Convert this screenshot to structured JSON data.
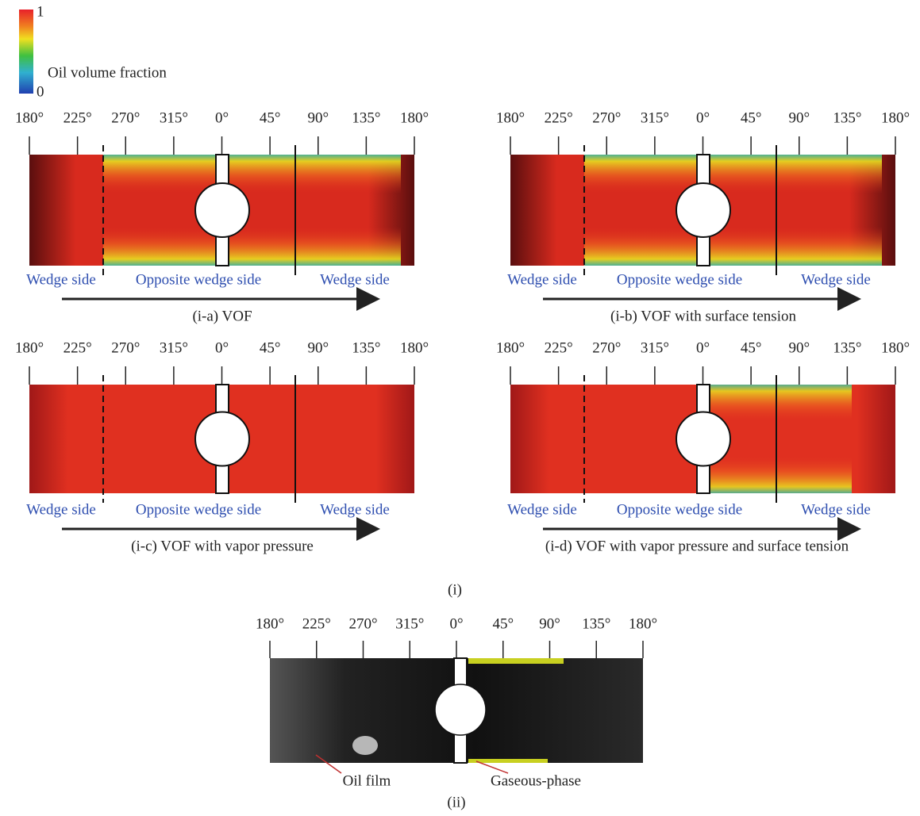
{
  "colorbar": {
    "max": "1",
    "min": "0",
    "label": "Oil volume fraction"
  },
  "panels": [
    {
      "angles": [
        "180°",
        "225°",
        "270°",
        "315°",
        "0°",
        "45°",
        "90°",
        "135°",
        "180°"
      ],
      "sides": [
        "Wedge side",
        "Opposite wedge side",
        "Wedge side"
      ],
      "caption": "(i-a) VOF"
    },
    {
      "angles": [
        "180°",
        "225°",
        "270°",
        "315°",
        "0°",
        "45°",
        "90°",
        "135°",
        "180°"
      ],
      "sides": [
        "Wedge side",
        "Opposite wedge side",
        "Wedge side"
      ],
      "caption": "(i-b) VOF with surface tension"
    },
    {
      "angles": [
        "180°",
        "225°",
        "270°",
        "315°",
        "0°",
        "45°",
        "90°",
        "135°",
        "180°"
      ],
      "sides": [
        "Wedge side",
        "Opposite wedge side",
        "Wedge side"
      ],
      "caption": "(i-c) VOF with vapor pressure"
    },
    {
      "angles": [
        "180°",
        "225°",
        "270°",
        "315°",
        "0°",
        "45°",
        "90°",
        "135°",
        "180°"
      ],
      "sides": [
        "Wedge side",
        "Opposite wedge side",
        "Wedge side"
      ],
      "caption": "(i-d) VOF with vapor pressure and surface tension"
    }
  ],
  "group_label": "(i)",
  "experiment": {
    "angles": [
      "180°",
      "225°",
      "270°",
      "315°",
      "0°",
      "45°",
      "90°",
      "135°",
      "180°"
    ],
    "annotations": [
      "Oil film",
      "Gaseous-phase"
    ],
    "caption": "(ii)"
  }
}
